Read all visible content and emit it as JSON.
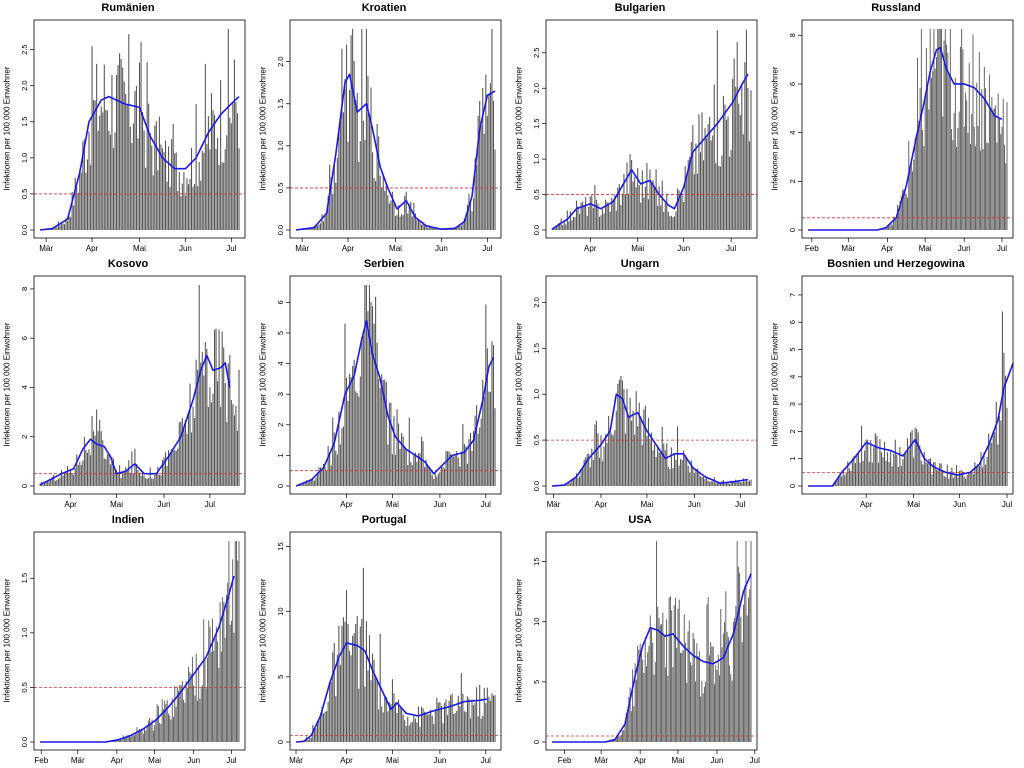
{
  "colors": {
    "bar": "#555555",
    "line": "#1a1ae6",
    "threshold": "#d93030",
    "axis": "#000000"
  },
  "chart_data": [
    {
      "type": "bar",
      "title": "Rumänien",
      "ylabel": "Infektionen per 100 000 Einwohner",
      "x_range": [
        0,
        130
      ],
      "ylim": [
        0,
        2.8
      ],
      "y_ticks": [
        0,
        0.5,
        1.0,
        1.5,
        2.0,
        2.5
      ],
      "y_tick_labels": [
        "0.0",
        "0.5",
        "1.0",
        "1.5",
        "2.0",
        "2.5"
      ],
      "x_ticks": [
        4,
        34,
        65,
        95,
        125
      ],
      "x_tick_labels": [
        "Mär",
        "Apr",
        "Mai",
        "Jun",
        "Jul"
      ],
      "threshold": 0.5,
      "profile": [
        [
          0,
          0
        ],
        [
          8,
          0.02
        ],
        [
          18,
          0.15
        ],
        [
          26,
          0.8
        ],
        [
          32,
          1.5
        ],
        [
          40,
          1.8
        ],
        [
          45,
          1.85
        ],
        [
          55,
          1.75
        ],
        [
          65,
          1.7
        ],
        [
          72,
          1.3
        ],
        [
          80,
          1.0
        ],
        [
          88,
          0.85
        ],
        [
          95,
          0.85
        ],
        [
          102,
          1.0
        ],
        [
          110,
          1.35
        ],
        [
          118,
          1.6
        ],
        [
          125,
          1.75
        ],
        [
          130,
          1.85
        ]
      ]
    },
    {
      "type": "bar",
      "title": "Kroatien",
      "ylabel": "Infektionen per 100 000 Einwohner",
      "x_range": [
        0,
        130
      ],
      "ylim": [
        0,
        2.4
      ],
      "y_ticks": [
        0,
        0.5,
        1.0,
        1.5,
        2.0
      ],
      "y_tick_labels": [
        "0.0",
        "0.5",
        "1.0",
        "1.5",
        "2.0"
      ],
      "x_ticks": [
        4,
        34,
        65,
        95,
        125
      ],
      "x_tick_labels": [
        "Mär",
        "Apr",
        "Mai",
        "Jun",
        "Jul"
      ],
      "threshold": 0.5,
      "profile": [
        [
          0,
          0
        ],
        [
          12,
          0.03
        ],
        [
          20,
          0.2
        ],
        [
          26,
          0.9
        ],
        [
          32,
          1.75
        ],
        [
          35,
          1.85
        ],
        [
          40,
          1.4
        ],
        [
          46,
          1.5
        ],
        [
          50,
          1.2
        ],
        [
          55,
          0.75
        ],
        [
          60,
          0.5
        ],
        [
          66,
          0.25
        ],
        [
          72,
          0.35
        ],
        [
          78,
          0.15
        ],
        [
          85,
          0.05
        ],
        [
          95,
          0.01
        ],
        [
          104,
          0.02
        ],
        [
          110,
          0.1
        ],
        [
          115,
          0.4
        ],
        [
          120,
          1.2
        ],
        [
          125,
          1.6
        ],
        [
          130,
          1.65
        ]
      ]
    },
    {
      "type": "bar",
      "title": "Bulgarien",
      "ylabel": "Infektionen per 100 000 Einwohner",
      "x_range": [
        0,
        130
      ],
      "ylim": [
        0,
        2.85
      ],
      "y_ticks": [
        0,
        0.5,
        1.0,
        1.5,
        2.0,
        2.5
      ],
      "y_tick_labels": [
        "0.0",
        "0.5",
        "1.0",
        "1.5",
        "2.0",
        "2.5"
      ],
      "x_ticks": [
        25,
        56,
        86,
        117
      ],
      "x_tick_labels": [
        "Apr",
        "Mai",
        "Jun",
        "Jul"
      ],
      "threshold": 0.5,
      "profile": [
        [
          0,
          0.01
        ],
        [
          6,
          0.1
        ],
        [
          10,
          0.15
        ],
        [
          16,
          0.3
        ],
        [
          25,
          0.37
        ],
        [
          32,
          0.3
        ],
        [
          40,
          0.4
        ],
        [
          48,
          0.7
        ],
        [
          52,
          0.85
        ],
        [
          58,
          0.65
        ],
        [
          64,
          0.7
        ],
        [
          70,
          0.5
        ],
        [
          76,
          0.35
        ],
        [
          80,
          0.3
        ],
        [
          86,
          0.6
        ],
        [
          92,
          1.1
        ],
        [
          100,
          1.3
        ],
        [
          108,
          1.5
        ],
        [
          118,
          1.8
        ],
        [
          124,
          2.05
        ],
        [
          128,
          2.2
        ]
      ]
    },
    {
      "type": "bar",
      "title": "Russland",
      "ylabel": "Infektionen per 100 000 Einwohner",
      "x_range": [
        0,
        158
      ],
      "ylim": [
        0,
        8.3
      ],
      "y_ticks": [
        0,
        2,
        4,
        6,
        8
      ],
      "y_tick_labels": [
        "0",
        "2",
        "4",
        "6",
        "8"
      ],
      "x_ticks": [
        3,
        32,
        63,
        93,
        124,
        154
      ],
      "x_tick_labels": [
        "Feb",
        "Mär",
        "Apr",
        "Mai",
        "Jun",
        "Jul"
      ],
      "threshold": 0.5,
      "profile": [
        [
          0,
          0
        ],
        [
          55,
          0
        ],
        [
          62,
          0.1
        ],
        [
          70,
          0.5
        ],
        [
          78,
          1.8
        ],
        [
          86,
          3.8
        ],
        [
          92,
          5.2
        ],
        [
          97,
          6.5
        ],
        [
          102,
          7.4
        ],
        [
          105,
          7.5
        ],
        [
          110,
          6.6
        ],
        [
          116,
          6.0
        ],
        [
          124,
          6.0
        ],
        [
          132,
          5.85
        ],
        [
          140,
          5.4
        ],
        [
          148,
          4.7
        ],
        [
          154,
          4.55
        ]
      ]
    },
    {
      "type": "bar",
      "title": "Kosovo",
      "ylabel": "Infektionen per 100 000 Einwohner",
      "x_range": [
        0,
        130
      ],
      "ylim": [
        0,
        8.2
      ],
      "y_ticks": [
        0,
        2,
        4,
        6,
        8
      ],
      "y_tick_labels": [
        "0",
        "2",
        "4",
        "6",
        "8"
      ],
      "x_ticks": [
        20,
        50,
        81,
        111
      ],
      "x_tick_labels": [
        "Apr",
        "Mai",
        "Jun",
        "Jul"
      ],
      "threshold": 0.5,
      "profile": [
        [
          0,
          0.05
        ],
        [
          8,
          0.3
        ],
        [
          14,
          0.5
        ],
        [
          22,
          0.7
        ],
        [
          28,
          1.5
        ],
        [
          33,
          1.9
        ],
        [
          37,
          1.7
        ],
        [
          42,
          1.6
        ],
        [
          46,
          1.2
        ],
        [
          50,
          0.5
        ],
        [
          56,
          0.6
        ],
        [
          62,
          0.9
        ],
        [
          68,
          0.5
        ],
        [
          76,
          0.5
        ],
        [
          84,
          1.2
        ],
        [
          92,
          2.0
        ],
        [
          100,
          3.5
        ],
        [
          105,
          4.7
        ],
        [
          109,
          5.3
        ],
        [
          113,
          4.7
        ],
        [
          118,
          4.8
        ],
        [
          121,
          5.0
        ],
        [
          124,
          4.0
        ]
      ]
    },
    {
      "type": "bar",
      "title": "Serbien",
      "ylabel": "Infektionen per 100 000 Einwohner",
      "x_range": [
        0,
        130
      ],
      "ylim": [
        0,
        6.6
      ],
      "y_ticks": [
        0,
        1,
        2,
        3,
        4,
        5,
        6
      ],
      "y_tick_labels": [
        "0",
        "1",
        "2",
        "3",
        "4",
        "5",
        "6"
      ],
      "x_ticks": [
        33,
        63,
        94,
        124
      ],
      "x_tick_labels": [
        "Apr",
        "Mai",
        "Jun",
        "Jul"
      ],
      "threshold": 0.5,
      "profile": [
        [
          0,
          0
        ],
        [
          10,
          0.2
        ],
        [
          18,
          0.6
        ],
        [
          25,
          1.4
        ],
        [
          32,
          3.0
        ],
        [
          38,
          3.6
        ],
        [
          43,
          4.8
        ],
        [
          46,
          5.4
        ],
        [
          50,
          4.3
        ],
        [
          55,
          3.5
        ],
        [
          60,
          2.3
        ],
        [
          65,
          1.6
        ],
        [
          72,
          1.2
        ],
        [
          78,
          1.0
        ],
        [
          84,
          0.8
        ],
        [
          90,
          0.4
        ],
        [
          96,
          0.7
        ],
        [
          102,
          1.0
        ],
        [
          110,
          1.1
        ],
        [
          116,
          1.5
        ],
        [
          122,
          2.8
        ],
        [
          126,
          3.9
        ],
        [
          129,
          4.2
        ]
      ]
    },
    {
      "type": "bar",
      "title": "Ungarn",
      "ylabel": "Infektionen per 100 000 Einwohner",
      "x_range": [
        0,
        130
      ],
      "ylim": [
        0,
        2.2
      ],
      "y_ticks": [
        0,
        0.5,
        1.0,
        1.5,
        2.0
      ],
      "y_tick_labels": [
        "0.0",
        "0.5",
        "1.0",
        "1.5",
        "2.0"
      ],
      "x_ticks": [
        1,
        32,
        62,
        93,
        123
      ],
      "x_tick_labels": [
        "Mär",
        "Apr",
        "Mai",
        "Jun",
        "Jul"
      ],
      "threshold": 0.5,
      "profile": [
        [
          0,
          0
        ],
        [
          8,
          0.01
        ],
        [
          16,
          0.1
        ],
        [
          24,
          0.3
        ],
        [
          32,
          0.45
        ],
        [
          38,
          0.6
        ],
        [
          42,
          1.0
        ],
        [
          46,
          0.95
        ],
        [
          50,
          0.75
        ],
        [
          56,
          0.8
        ],
        [
          62,
          0.6
        ],
        [
          68,
          0.45
        ],
        [
          74,
          0.3
        ],
        [
          80,
          0.35
        ],
        [
          86,
          0.35
        ],
        [
          92,
          0.2
        ],
        [
          100,
          0.1
        ],
        [
          110,
          0.03
        ],
        [
          120,
          0.05
        ],
        [
          128,
          0.07
        ]
      ]
    },
    {
      "type": "bar",
      "title": "Bosnien und Herzegowina",
      "ylabel": "Infektionen per 100 000 Einwohner",
      "x_range": [
        0,
        130
      ],
      "ylim": [
        0,
        7.4
      ],
      "y_ticks": [
        0,
        1,
        2,
        3,
        4,
        5,
        6,
        7
      ],
      "y_tick_labels": [
        "0",
        "1",
        "2",
        "3",
        "4",
        "5",
        "6",
        "7"
      ],
      "x_ticks": [
        38,
        69,
        99,
        130
      ],
      "x_tick_labels": [
        "Apr",
        "Mai",
        "Jun",
        "Jul"
      ],
      "threshold": 0.5,
      "profile": [
        [
          0,
          0
        ],
        [
          16,
          0
        ],
        [
          22,
          0.5
        ],
        [
          30,
          1.0
        ],
        [
          38,
          1.6
        ],
        [
          46,
          1.4
        ],
        [
          54,
          1.3
        ],
        [
          62,
          1.1
        ],
        [
          70,
          1.7
        ],
        [
          76,
          1.0
        ],
        [
          82,
          0.7
        ],
        [
          90,
          0.5
        ],
        [
          98,
          0.4
        ],
        [
          106,
          0.5
        ],
        [
          112,
          0.8
        ],
        [
          118,
          1.5
        ],
        [
          124,
          2.4
        ],
        [
          128,
          3.6
        ],
        [
          132,
          4.2
        ],
        [
          134,
          4.5
        ]
      ]
    },
    {
      "type": "bar",
      "title": "Indien",
      "ylabel": "Infektionen per 100 000 Einwohner",
      "x_range": [
        0,
        158
      ],
      "ylim": [
        0,
        1.85
      ],
      "y_ticks": [
        0,
        0.5,
        1.0,
        1.5
      ],
      "y_tick_labels": [
        "0.0",
        "0.5",
        "1.0",
        "1.5"
      ],
      "x_ticks": [
        1,
        30,
        61,
        91,
        122,
        152
      ],
      "x_tick_labels": [
        "Feb",
        "Mär",
        "Apr",
        "Mai",
        "Jun",
        "Jul"
      ],
      "threshold": 0.5,
      "profile": [
        [
          0,
          0
        ],
        [
          52,
          0
        ],
        [
          62,
          0.02
        ],
        [
          72,
          0.06
        ],
        [
          82,
          0.12
        ],
        [
          92,
          0.2
        ],
        [
          102,
          0.32
        ],
        [
          112,
          0.46
        ],
        [
          122,
          0.62
        ],
        [
          132,
          0.78
        ],
        [
          142,
          1.05
        ],
        [
          150,
          1.35
        ],
        [
          154,
          1.52
        ]
      ]
    },
    {
      "type": "bar",
      "title": "Portugal",
      "ylabel": "Infektionen per 100 000 Einwohner",
      "x_range": [
        0,
        130
      ],
      "ylim": [
        0,
        15.5
      ],
      "y_ticks": [
        0,
        5,
        10,
        15
      ],
      "y_tick_labels": [
        "0",
        "5",
        "10",
        "15"
      ],
      "x_ticks": [
        0,
        33,
        63,
        94,
        124
      ],
      "x_tick_labels": [
        "Mär",
        "Apr",
        "Mai",
        "Jun",
        "Jul"
      ],
      "threshold": 0.5,
      "profile": [
        [
          0,
          0
        ],
        [
          5,
          0.05
        ],
        [
          10,
          0.5
        ],
        [
          16,
          2.0
        ],
        [
          22,
          4.5
        ],
        [
          28,
          6.5
        ],
        [
          33,
          7.6
        ],
        [
          40,
          7.4
        ],
        [
          45,
          7.0
        ],
        [
          50,
          5.5
        ],
        [
          56,
          4.0
        ],
        [
          62,
          2.5
        ],
        [
          66,
          3.0
        ],
        [
          72,
          2.2
        ],
        [
          80,
          2.0
        ],
        [
          90,
          2.4
        ],
        [
          100,
          2.7
        ],
        [
          110,
          3.1
        ],
        [
          120,
          3.2
        ],
        [
          125,
          3.3
        ]
      ]
    },
    {
      "type": "bar",
      "title": "USA",
      "ylabel": "Infektionen per 100 000 Einwohner",
      "x_range": [
        0,
        158
      ],
      "ylim": [
        0,
        16.8
      ],
      "y_ticks": [
        0,
        5,
        10,
        15
      ],
      "y_tick_labels": [
        "0",
        "5",
        "10",
        "15"
      ],
      "x_ticks": [
        10,
        39,
        70,
        100,
        131,
        161
      ],
      "x_tick_labels": [
        "Feb",
        "Mär",
        "Apr",
        "Mai",
        "Jun",
        "Jul"
      ],
      "threshold": 0.5,
      "profile": [
        [
          0,
          0
        ],
        [
          42,
          0
        ],
        [
          50,
          0.2
        ],
        [
          58,
          1.5
        ],
        [
          66,
          5.5
        ],
        [
          72,
          8.0
        ],
        [
          78,
          9.5
        ],
        [
          84,
          9.3
        ],
        [
          90,
          8.8
        ],
        [
          96,
          9.0
        ],
        [
          104,
          8.0
        ],
        [
          112,
          7.2
        ],
        [
          120,
          6.7
        ],
        [
          128,
          6.5
        ],
        [
          136,
          7.0
        ],
        [
          144,
          9.0
        ],
        [
          152,
          12.5
        ],
        [
          158,
          14.0
        ]
      ]
    }
  ]
}
